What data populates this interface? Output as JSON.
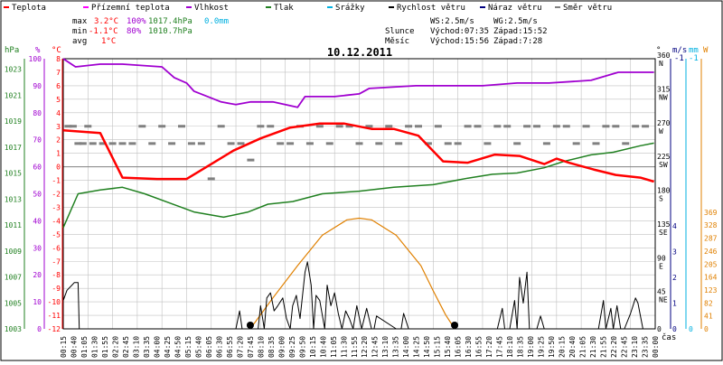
{
  "legend": [
    {
      "label": "Teplota",
      "color": "#ff0000"
    },
    {
      "label": "Přízemní teplota",
      "color": "#ff00ff"
    },
    {
      "label": "Vlhkost",
      "color": "#a000d0"
    },
    {
      "label": "Tlak",
      "color": "#208020"
    },
    {
      "label": "Srážky",
      "color": "#00b0e0"
    },
    {
      "label": "Rychlost větru",
      "color": "#000000"
    },
    {
      "label": "Náraz větru",
      "color": "#000080"
    },
    {
      "label": "Směr větru",
      "color": "#808080"
    }
  ],
  "stats": {
    "max_label": "max",
    "max_temp": "3.2°C",
    "max_hum": "100%",
    "max_press": "1017.4hPa",
    "max_rain": "0.0mm",
    "min_label": "min",
    "min_temp": "-1.1°C",
    "min_hum": "80%",
    "min_press": "1010.7hPa",
    "avg_label": "avg",
    "avg_temp": "1°C"
  },
  "wind": {
    "ws": "WS:2.5m/s",
    "wg": "WG:2.5m/s"
  },
  "sun": {
    "label": "Slunce",
    "rise": "Východ:07:35",
    "set": "Západ:15:52"
  },
  "moon": {
    "label": "Měsíc",
    "rise": "Východ:15:56",
    "set": "Západ:7:28"
  },
  "date": "10.12.2011",
  "colors": {
    "temp": "#ff0000",
    "humidity": "#a000d0",
    "pressure": "#208020",
    "rain": "#00b0e0",
    "wind_speed": "#000000",
    "wind_gust": "#000080",
    "wind_dir": "#808080",
    "solar": "#e08000",
    "axis_hpa": "#208020",
    "axis_pct": "#a000d0",
    "axis_temp": "#ff0000",
    "axis_ms": "#000080",
    "axis_mm": "#00b0e0",
    "axis_w": "#e08000",
    "grid": "#c0c0c0"
  },
  "chart_data": {
    "type": "line",
    "title": "10.12.2011",
    "xlabel": "čas",
    "x_ticks": [
      "00:15",
      "00:40",
      "01:05",
      "01:30",
      "01:55",
      "02:20",
      "02:45",
      "03:10",
      "03:35",
      "04:00",
      "04:25",
      "04:50",
      "05:15",
      "05:40",
      "06:05",
      "06:30",
      "06:55",
      "07:20",
      "07:45",
      "08:10",
      "08:35",
      "09:00",
      "09:25",
      "09:50",
      "10:15",
      "10:40",
      "11:05",
      "11:30",
      "11:55",
      "12:20",
      "12:45",
      "13:10",
      "13:35",
      "14:00",
      "14:25",
      "14:50",
      "15:15",
      "15:40",
      "16:05",
      "16:30",
      "16:55",
      "17:20",
      "17:45",
      "18:10",
      "18:35",
      "19:00",
      "19:25",
      "19:50",
      "20:15",
      "20:40",
      "21:05",
      "21:30",
      "21:55",
      "22:20",
      "22:45",
      "23:10",
      "23:35",
      "00:00"
    ],
    "axes": {
      "hpa": {
        "label": "hPa",
        "ticks": [
          "1023",
          "1021",
          "1019",
          "1017",
          "1015",
          "1013",
          "1011",
          "1009",
          "1007",
          "1005",
          "1003"
        ]
      },
      "pct": {
        "label": "%",
        "ticks": [
          "100",
          "90",
          "80",
          "70",
          "60",
          "50",
          "40",
          "30",
          "20",
          "10",
          "0"
        ]
      },
      "temp": {
        "label": "°C",
        "ticks": [
          "8",
          "7",
          "6",
          "5",
          "4",
          "3",
          "2",
          "1",
          "0",
          "-1",
          "-2",
          "-3",
          "-4",
          "-5",
          "-6",
          "-7",
          "-8",
          "-9",
          "-10",
          "-11",
          "-12"
        ]
      },
      "dir": {
        "label": "°",
        "ticks": [
          "360 N",
          "315 NW",
          "270 W",
          "225 SW",
          "180 S",
          "135 SE",
          "90 E",
          "45 NE",
          "0"
        ]
      },
      "ms": {
        "label": "m/s",
        "ticks": [
          "4",
          "3",
          "2",
          "1",
          "0"
        ],
        "top": "-1"
      },
      "mm": {
        "label": "mm",
        "ticks": [
          "0"
        ],
        "top": "-1"
      },
      "w": {
        "label": "W",
        "ticks": [
          "369",
          "328",
          "287",
          "246",
          "205",
          "164",
          "123",
          "82",
          "41",
          "0"
        ]
      }
    },
    "series": [
      {
        "name": "Teplota",
        "unit": "°C",
        "x": [
          0,
          1.5,
          2.4,
          3.8,
          5,
          6,
          6.9,
          8,
          9.2,
          10.4,
          11.4,
          12.5,
          13.4,
          14.4,
          15.4,
          16.4,
          17.5,
          18.5,
          19.5,
          20,
          20.5,
          21.5,
          22.4,
          23.4,
          23.95
        ],
        "values": [
          2.7,
          2.5,
          -0.8,
          -0.9,
          -0.9,
          0.2,
          1.2,
          2.1,
          2.9,
          3.2,
          3.2,
          2.8,
          2.8,
          2.3,
          0.4,
          0.3,
          0.9,
          0.8,
          0.2,
          0.6,
          0.3,
          -0.2,
          -0.6,
          -0.8,
          -1.1
        ]
      },
      {
        "name": "Vlhkost",
        "unit": "%",
        "x": [
          0,
          0.5,
          1.5,
          2.4,
          4,
          4.5,
          5,
          5.3,
          6.4,
          7,
          7.6,
          8.5,
          9.5,
          9.8,
          11,
          12,
          12.4,
          14.3,
          16,
          17,
          18.4,
          19.7,
          21.4,
          22.5,
          23.5,
          23.95
        ],
        "values": [
          100,
          97,
          98,
          98,
          97,
          93,
          91,
          88,
          84,
          83,
          84,
          84,
          82,
          86,
          86,
          87,
          89,
          90,
          90,
          90,
          91,
          91,
          92,
          95,
          95,
          95
        ]
      },
      {
        "name": "Tlak",
        "unit": "hPa",
        "x": [
          0,
          0.6,
          1.5,
          2.4,
          3.3,
          4.3,
          5.3,
          6.5,
          7.5,
          8.3,
          9.3,
          10.5,
          12,
          13.4,
          15,
          16.4,
          17.4,
          18.4,
          19.5,
          20.3,
          21.4,
          22.3,
          23.4,
          23.95
        ],
        "values": [
          1010.8,
          1013.4,
          1013.7,
          1013.9,
          1013.4,
          1012.7,
          1012.0,
          1011.6,
          1012.0,
          1012.6,
          1012.8,
          1013.4,
          1013.6,
          1013.9,
          1014.1,
          1014.6,
          1014.9,
          1015.0,
          1015.4,
          1015.9,
          1016.4,
          1016.6,
          1017.1,
          1017.3
        ]
      },
      {
        "name": "Rychlost větru",
        "unit": "m/s",
        "x": [
          0,
          0.15,
          0.35,
          0.45,
          0.6,
          0.65,
          0.8,
          1.2,
          7.0,
          7.15,
          7.25,
          7.4,
          7.9,
          8.0,
          8.1,
          8.15,
          8.25,
          8.4,
          8.55,
          8.7,
          8.9,
          9.05,
          9.2,
          9.3,
          9.45,
          9.6,
          9.8,
          9.9,
          10.05,
          10.15,
          10.25,
          10.4,
          10.6,
          10.7,
          10.85,
          11.0,
          11.15,
          11.3,
          11.45,
          11.6,
          11.75,
          11.9,
          12.1,
          12.3,
          12.5,
          12.6,
          12.7,
          13.5,
          13.7,
          13.8,
          14.0,
          14.1,
          14.2,
          14.3,
          17.6,
          17.8,
          17.9,
          18.1,
          18.3,
          18.4,
          18.5,
          18.65,
          18.8,
          18.9,
          19.05,
          19.2,
          19.35,
          19.5,
          19.65,
          19.8,
          21.7,
          21.9,
          22.0,
          22.2,
          22.3,
          22.45,
          22.6,
          22.75,
          23.0,
          23.2,
          23.3,
          23.5,
          23.95
        ],
        "values": [
          1.1,
          1.5,
          1.7,
          1.8,
          1.8,
          0,
          0,
          0,
          0,
          0.7,
          0,
          0,
          0,
          0.9,
          0.3,
          0,
          1.2,
          1.4,
          0.7,
          0.9,
          1.2,
          0.4,
          0,
          0.9,
          1.3,
          0.4,
          2.2,
          2.6,
          1.7,
          0,
          1.3,
          1.1,
          0,
          1.7,
          0.9,
          1.4,
          0.6,
          0,
          0.7,
          0.4,
          0,
          0.9,
          0,
          0.8,
          0,
          0,
          0.5,
          0,
          0,
          0.6,
          0,
          0,
          0,
          0,
          0,
          0.8,
          0,
          0,
          1.1,
          0,
          2.0,
          1.0,
          2.2,
          0,
          0,
          0,
          0.5,
          0,
          0,
          0,
          0,
          1.1,
          0,
          0.8,
          0,
          0.9,
          0,
          0,
          0.6,
          1.2,
          1.0,
          0,
          0
        ]
      },
      {
        "name": "Solar",
        "unit": "W",
        "x": [
          7.58,
          8.5,
          9.5,
          10.5,
          11.5,
          12.0,
          12.5,
          13.5,
          14.5,
          15.0,
          15.5,
          15.87
        ],
        "values": [
          0,
          98,
          200,
          296,
          345,
          350,
          345,
          296,
          200,
          120,
          45,
          0
        ]
      },
      {
        "name": "Směr větru",
        "unit": "°",
        "x": [
          0.2,
          0.4,
          0.6,
          0.8,
          1.0,
          1.2,
          1.6,
          2.0,
          2.4,
          2.8,
          3.2,
          3.6,
          4.0,
          4.4,
          4.8,
          5.2,
          5.6,
          6.0,
          6.4,
          6.8,
          7.2,
          7.6,
          8.0,
          8.4,
          8.8,
          9.2,
          9.6,
          10.0,
          10.4,
          10.8,
          11.2,
          11.6,
          12.0,
          12.4,
          12.8,
          13.2,
          13.6,
          14.0,
          14.4,
          14.8,
          15.2,
          15.6,
          16.0,
          16.4,
          16.8,
          17.2,
          17.6,
          18.0,
          18.4,
          18.8,
          19.2,
          19.6,
          20.0,
          20.4,
          20.8,
          21.2,
          21.6,
          22.0,
          22.4,
          22.8,
          23.2,
          23.6
        ],
        "values": [
          270,
          270,
          247,
          247,
          270,
          247,
          247,
          247,
          247,
          247,
          270,
          247,
          270,
          247,
          270,
          247,
          247,
          200,
          270,
          247,
          247,
          225,
          270,
          270,
          247,
          247,
          270,
          247,
          270,
          247,
          270,
          270,
          247,
          270,
          247,
          270,
          247,
          270,
          270,
          247,
          270,
          247,
          247,
          270,
          270,
          247,
          270,
          270,
          247,
          270,
          270,
          247,
          270,
          270,
          247,
          270,
          247,
          270,
          270,
          247,
          270,
          270
        ]
      }
    ]
  }
}
